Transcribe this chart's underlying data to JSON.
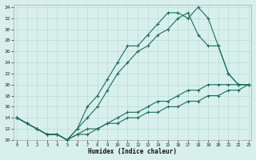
{
  "xlabel": "Humidex (Indice chaleur)",
  "bg_color": "#d8f0eb",
  "grid_color": "#b8ddd6",
  "line_color": "#1a6e5e",
  "xlim_min": -0.3,
  "xlim_max": 23.3,
  "ylim_min": 10,
  "ylim_max": 34.5,
  "yticks": [
    10,
    12,
    14,
    16,
    18,
    20,
    22,
    24,
    26,
    28,
    30,
    32,
    34
  ],
  "xticks": [
    0,
    1,
    2,
    3,
    4,
    5,
    6,
    7,
    8,
    9,
    10,
    11,
    12,
    13,
    14,
    15,
    16,
    17,
    18,
    19,
    20,
    21,
    22,
    23
  ],
  "curve1_x": [
    0,
    1,
    2,
    3,
    4,
    5,
    6,
    7,
    8,
    9,
    10,
    11,
    12,
    13,
    14,
    15,
    16,
    17,
    18,
    19,
    20,
    21,
    22,
    23
  ],
  "curve1_y": [
    14,
    13,
    12,
    11,
    11,
    10,
    12,
    16,
    18,
    21,
    24,
    27,
    27,
    29,
    31,
    33,
    33,
    32,
    34,
    32,
    27,
    22,
    20,
    20
  ],
  "curve2_x": [
    0,
    1,
    2,
    3,
    4,
    5,
    6,
    7,
    8,
    9,
    10,
    11,
    12,
    13,
    14,
    15,
    16,
    17,
    18,
    19,
    20,
    21,
    22,
    23
  ],
  "curve2_y": [
    14,
    13,
    12,
    11,
    11,
    10,
    12,
    14,
    16,
    19,
    22,
    24,
    26,
    27,
    29,
    30,
    32,
    33,
    29,
    27,
    27,
    22,
    20,
    20
  ],
  "line3_x": [
    0,
    1,
    2,
    3,
    4,
    5,
    6,
    7,
    8,
    9,
    10,
    11,
    12,
    13,
    14,
    15,
    16,
    17,
    18,
    19,
    20,
    21,
    22,
    23
  ],
  "line3_y": [
    14,
    13,
    12,
    11,
    11,
    10,
    11,
    12,
    12,
    13,
    14,
    15,
    15,
    16,
    17,
    17,
    18,
    19,
    19,
    20,
    20,
    20,
    20,
    20
  ],
  "line4_x": [
    0,
    1,
    2,
    3,
    4,
    5,
    6,
    7,
    8,
    9,
    10,
    11,
    12,
    13,
    14,
    15,
    16,
    17,
    18,
    19,
    20,
    21,
    22,
    23
  ],
  "line4_y": [
    14,
    13,
    12,
    11,
    11,
    10,
    11,
    11,
    12,
    13,
    13,
    14,
    14,
    15,
    15,
    16,
    16,
    17,
    17,
    18,
    18,
    19,
    19,
    20
  ]
}
